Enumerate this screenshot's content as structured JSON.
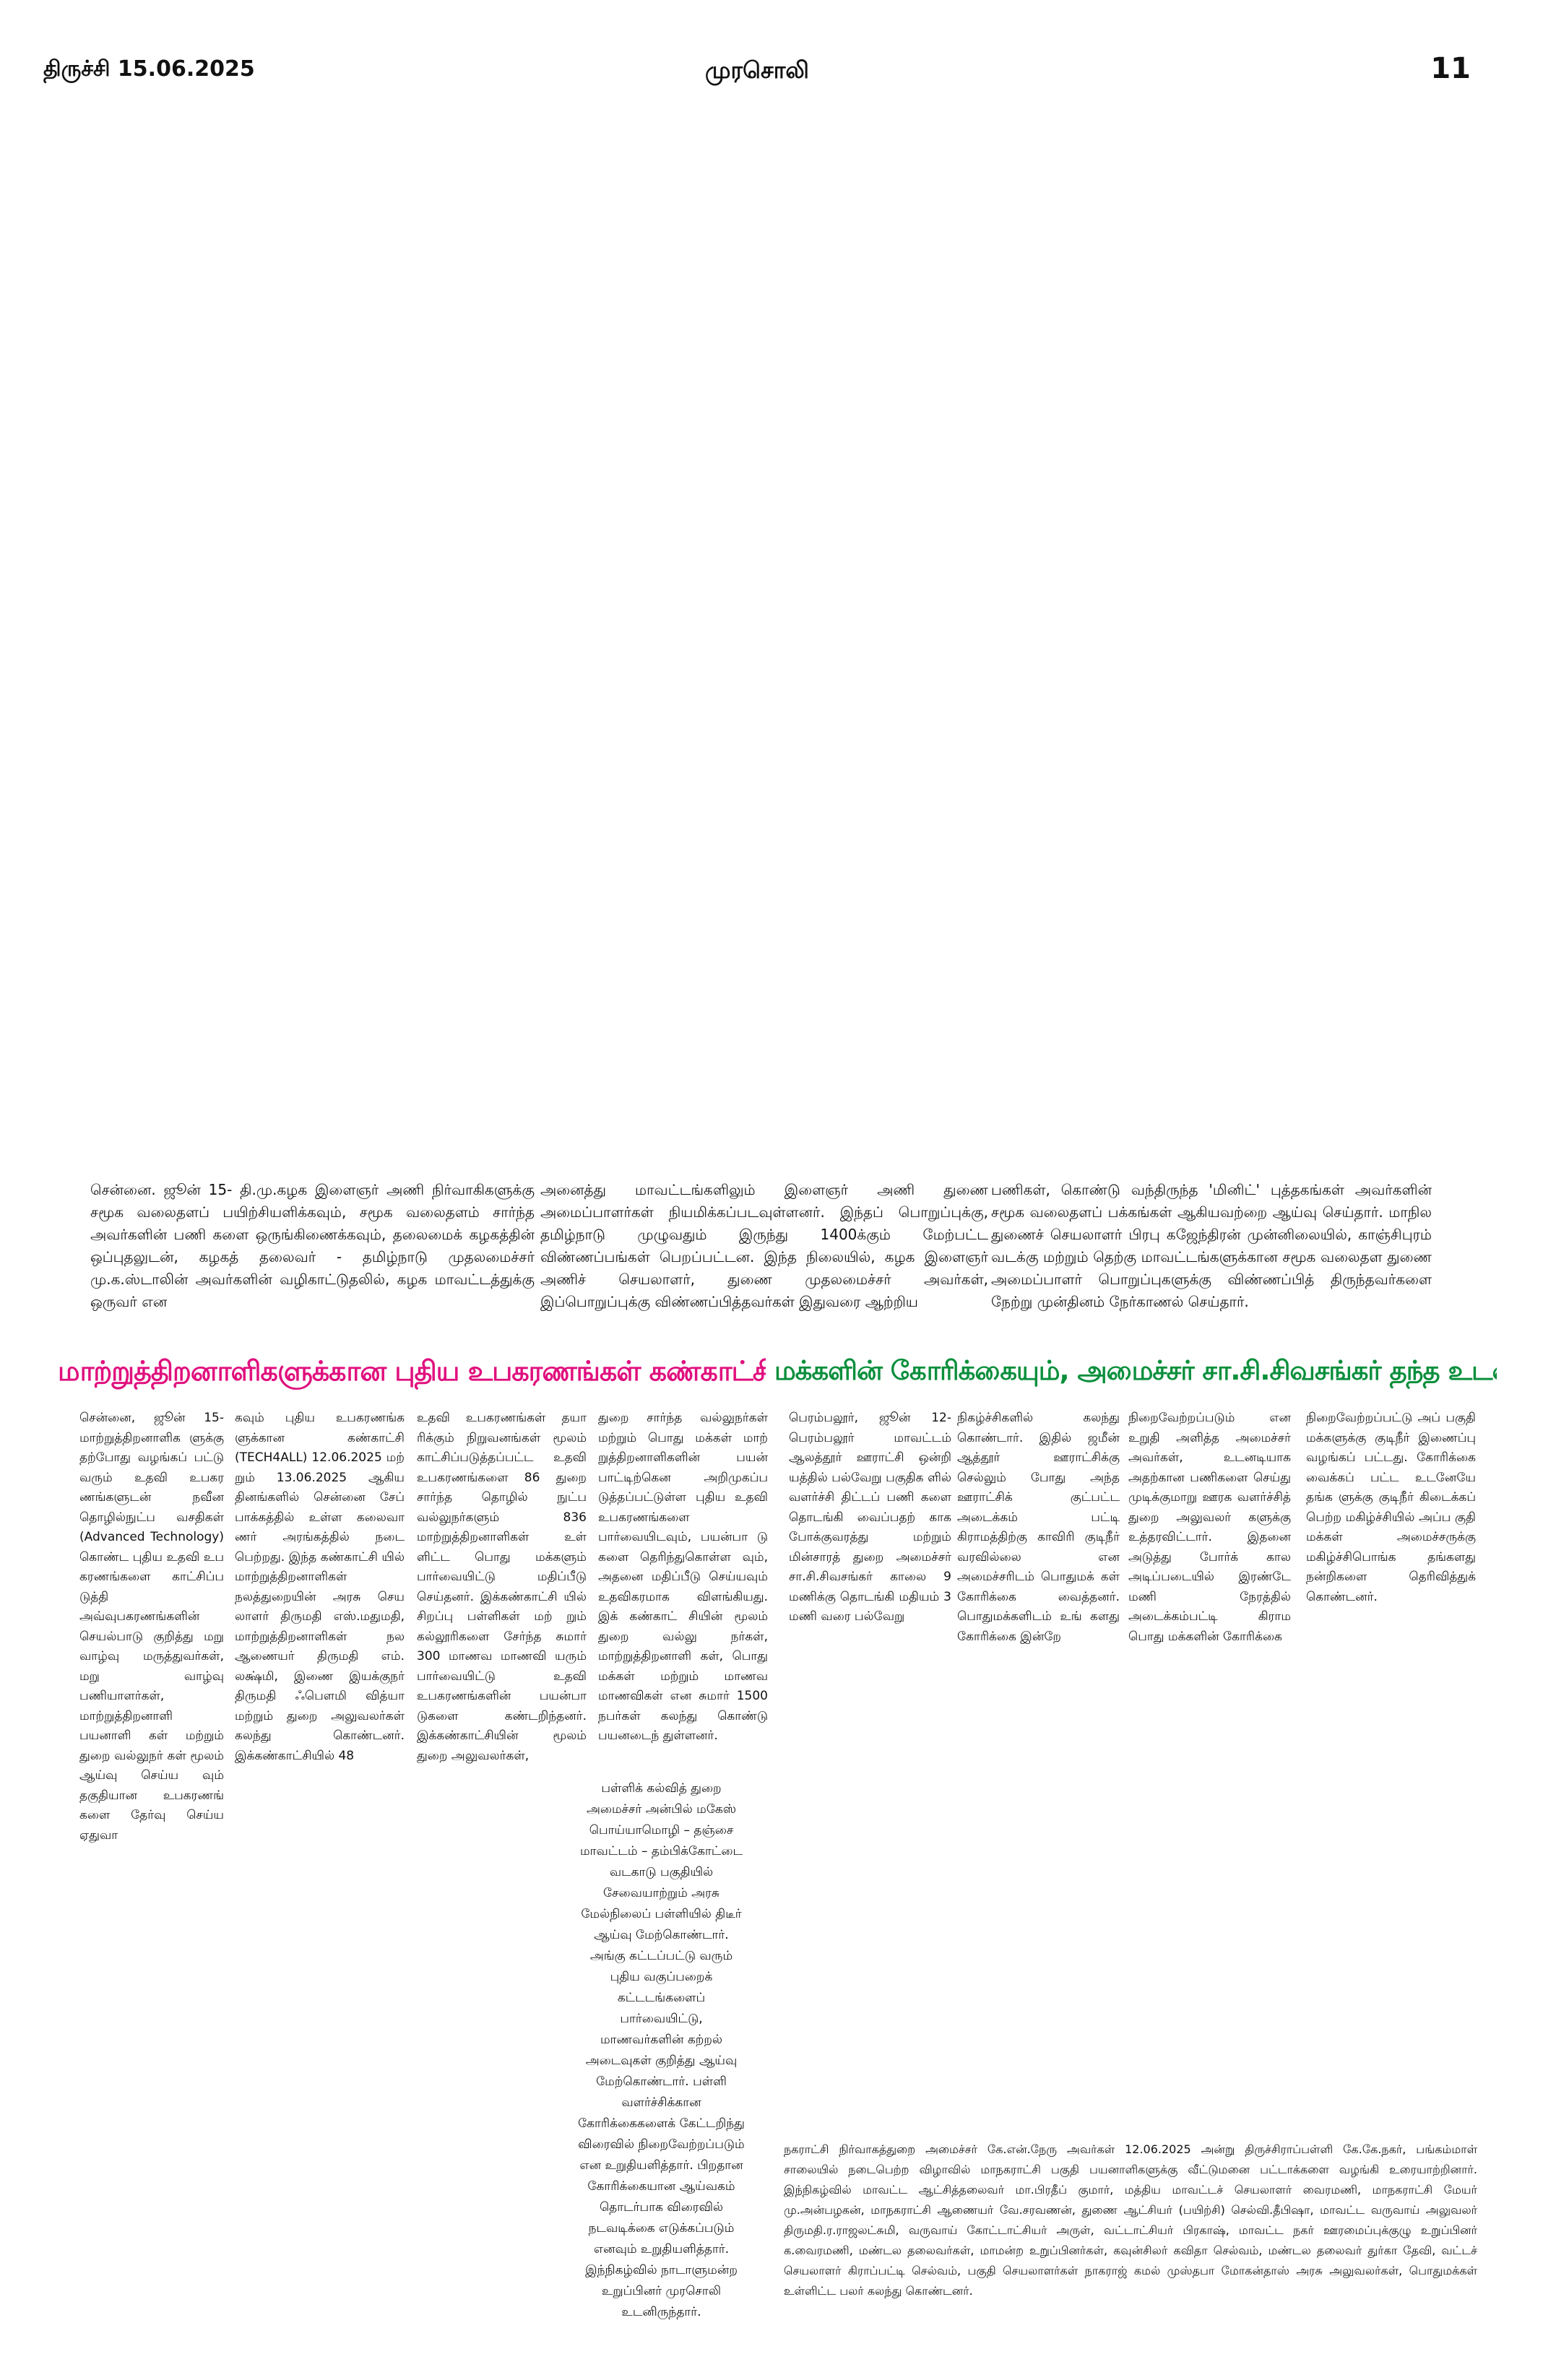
{
  "header": {
    "date": "திருச்சி 15.06.2025",
    "paper_name": "முரசொலி",
    "page_number": "11"
  },
  "top_story": {
    "col1": "சென்னை. ஜூன் 15- தி.மு.கழக இளைஞர் அணி நிர்வாகிகளுக்கு சமூக வலைதளப் பயிற்சியளிக்கவும், சமூக வலைதளம் சார்ந்த அவர்களின் பணி களை ஒருங்கிணைக்கவும், தலைமைக் கழகத்தின் ஒப்புதலுடன், கழகத் தலைவர் - தமிழ்நாடு முதலமைச்சர் மு.க.ஸ்டாலின் அவர்களின் வழிகாட்டுதலில், கழக மாவட்டத்துக்கு ஒருவர் என",
    "col2": "அனைத்து மாவட்டங்களிலும் இளைஞர் அணி துணை அமைப்பாளர்கள் நியமிக்கப்படவுள்ளனர். இந்தப் பொறுப்புக்கு, தமிழ்நாடு முழுவதும் இருந்து 1400க்கும் மேற்பட்ட விண்ணப்பங்கள் பெறப்பட்டன. இந்த நிலையில், கழக இளைஞர் அணிச் செயலாளர், துணை முதலமைச்சர் அவர்கள், இப்பொறுப்புக்கு விண்ணப்பித்தவர்கள் இதுவரை ஆற்றிய",
    "col3": "பணிகள், கொண்டு வந்திருந்த 'மினிட்' புத்தகங்கள் அவர்களின் சமூக வலைதளப் பக்கங்கள் ஆகியவற்றை ஆய்வு செய்தார். மாநில துணைச் செயலாளர் பிரபு கஜேந்திரன் முன்னிலையில், காஞ்சிபுரம் வடக்கு மற்றும் தெற்கு மாவட்டங்களுக்கான சமூக வலைதள துணை அமைப்பாளர் பொறுப்புகளுக்கு விண்ணப்பித் திருந்தவர்களை நேற்று முன்தினம் நேர்காணல் செய்தார்."
  },
  "story_left": {
    "headline": "மாற்றுத்திறனாளிகளுக்கான புதிய உபகரணங்கள் கண்காட்சி!",
    "col1": "சென்னை, ஜூன் 15- மாற்றுத்திறனாளிக ளுக்கு தற்போது வழங்கப் பட்டு வரும் உதவி உபகர ணங்களுடன் நவீன தொழில்நுட்ப வசதிகள் (Advanced Technology) கொண்ட புதிய உதவி உப கரணங்களை காட்சிப்ப டுத்தி அவ்வுபகரணங்களின் செயல்பாடு குறித்து மறு வாழ்வு மருத்துவர்கள், மறு வாழ்வு பணியாளர்கள், மாற்றுத்திறனாளி பயனாளி கள் மற்றும் துறை வல்லுநர் கள் மூலம் ஆய்வு செய்ய வும் தகுதியான உபகரணங் களை தேர்வு செய்ய ஏதுவா",
    "col2": "கவும் புதிய உபகரணங்க ளுக்கான கண்காட்சி (TECH4ALL) 12.06.2025 மற் றும் 13.06.2025 ஆகிய தினங்களில் சென்னை சேப் பாக்கத்தில் உள்ள கலைவா ணர் அரங்கத்தில் நடை பெற்றது. இந்த கண்காட்சி யில் மாற்றுத்திறனாளிகள் நலத்துறையின் அரசு செய லாளர் திருமதி எஸ்.மதுமதி, மாற்றுத்திறனாளிகள் நல ஆணையர் திருமதி எம். லக்ஷ்மி, இணை இயக்குநர் திருமதி ஃபௌமி வித்யா மற்றும் துறை அலுவலர்கள் கலந்து கொண்டனர். இக்கண்காட்சியில் 48",
    "col3": "உதவி உபகரணங்கள் தயா ரிக்கும் நிறுவனங்கள் மூலம் காட்சிப்படுத்தப்பட்ட உதவி உபகரணங்களை 86 துறை சார்ந்த தொழில் நுட்ப வல்லுநர்களும் 836 மாற்றுத்திறனாளிகள் உள் ளிட்ட பொது மக்களும் பார்வையிட்டு மதிப்பீடு செய்தனர். இக்கண்காட்சி யில் சிறப்பு பள்ளிகள் மற் றும் கல்லூரிகளை சேர்ந்த சுமார் 300 மாணவ மாணவி யரும் பார்வையிட்டு உதவி உபகரணங்களின் பயன்பா டுகளை கண்டறிந்தனர். இக்கண்காட்சியின் மூலம் துறை அலுவலர்கள்,",
    "col4": "துறை சார்ந்த வல்லுநர்கள் மற்றும் பொது மக்கள் மாற் றுத்திறனாளிகளின் பயன் பாட்டிற்கென அறிமுகப்ப டுத்தப்பட்டுள்ள புதிய உதவி உபகரணங்களை பார்வையிடவும், பயன்பா டு களை தெரிந்துகொள்ள வும், அதனை மதிப்பீடு செய்யவும் உதவிகரமாக விளங்கியது. இக் கண்காட் சியின் மூலம் துறை வல்லு நர்கள், மாற்றுத்திறனாளி கள், பொது மக்கள் மற்றும் மாணவ மாணவிகள் என சுமார் 1500 நபர்கள் கலந்து கொண்டு பயனடைந் துள்ளனர்."
  },
  "story_right": {
    "headline": "மக்களின் கோரிக்கையும், அமைச்சர் சா.சி.சிவசங்கர் தந்த உடனடித் தீர்வும்!",
    "col1": "பெரம்பலூர், ஜூன் 12- பெரம்பலூர் மாவட்டம் ஆலத்தூர் ஊராட்சி ஒன்றி யத்தில் பல்வேறு பகுதிக ளில் வளர்ச்சி திட்டப் பணி களை தொடங்கி வைப்பதற் காக போக்குவரத்து மற்றும் மின்சாரத் துறை அமைச்சர் சா.சி.சிவசங்கர் காலை 9 மணிக்கு தொடங்கி மதியம் 3 மணி வரை பல்வேறு",
    "col2": "நிகழ்ச்சிகளில் கலந்து கொண்டார். இதில் ஜமீன் ஆத்தூர் ஊராட்சிக்கு செல்லும் போது அந்த ஊராட்சிக் குட்பட்ட அடைக்கம் பட்டி கிராமத்திற்கு காவிரி குடிநீர் வரவில்லை என அமைச்சரிடம் பொதுமக் கள் கோரிக்கை வைத்தனர். பொதுமக்களிடம் உங் களது கோரிக்கை இன்றே",
    "col3": "நிறைவேற்றப்படும் என உறுதி அளித்த அமைச்சர் அவர்கள், உடனடியாக அதற்கான பணிகளை செய்து முடிக்குமாறு ஊரக வளர்ச்சித் துறை அலுவலர் களுக்கு உத்தரவிட்டார். இதனை அடுத்து போர்க் கால அடிப்படையில் இரண்டே மணி நேரத்தில் அடைக்கம்பட்டி கிராம பொது மக்களின் கோரிக்கை",
    "col4": "நிறைவேற்றப்பட்டு அப் பகுதி மக்களுக்கு குடிநீர் இணைப்பு வழங்கப் பட்டது. கோரிக்கை வைக்கப் பட்ட உடனேயே தங்க ளுக்கு குடிநீர் கிடைக்கப் பெற்ற மகிழ்ச்சியில் அப்ப குதி மக்கள் அமைச்சருக்கு மகிழ்ச்சிபொங்க தங்களது நன்றிகளை தெரிவித்துக் கொண்டனர்."
  },
  "caption_center": "பள்ளிக் கல்வித் துறை அமைச்சர் அன்பில் மகேஸ் பொய்யாமொழி – தஞ்சை மாவட்டம் – தம்பிக்கோட்டை வடகாடு பகுதியில் சேவையாற்றும் அரசு மேல்நிலைப் பள்ளியில் திடீர் ஆய்வு மேற்கொண்டார். அங்கு கட்டப்பட்டு வரும் புதிய வகுப்பறைக் கட்டடங்களைப் பார்வையிட்டு, மாணவர்களின் கற்றல் அடைவுகள் குறித்து ஆய்வு மேற்கொண்டார். பள்ளி வளர்ச்சிக்கான கோரிக்கைகளைக் கேட்டறிந்து விரைவில் நிறைவேற்றப்படும் என உறுதியளித்தார். பிறதான கோரிக்கையான ஆய்வகம் தொடர்பாக விரைவில் நடவடிக்கை எடுக்கப்படும் எனவும் உறுதியளித்தார். இந்நிகழ்வில் நாடாளுமன்ற உறுப்பினர் முரசொலி உடனிருந்தார்.",
  "caption_bottom": "நகராட்சி நிர்வாகத்துறை அமைச்சர் கே.என்.நேரு அவர்கள் 12.06.2025 அன்று திருச்சிராப்பள்ளி கே.கே.நகர், பங்கம்மாள் சாலையில் நடைபெற்ற விழாவில் மாநகராட்சி பகுதி பயனாளிகளுக்கு வீட்டுமனை பட்டாக்களை வழங்கி உரையாற்றினார். இந்நிகழ்வில் மாவட்ட ஆட்சித்தலைவர் மா.பிரதீப் குமார், மத்திய மாவட்டச் செயலாளர் வைரமணி, மாநகராட்சி மேயர் மு.அன்பழகன், மாநகராட்சி ஆணையர் வே.சரவணன், துணை ஆட்சியர் (பயிற்சி) செல்வி.தீபிஷா, மாவட்ட வருவாய் அலுவலர் திருமதி.ர.ராஜலட்சுமி, வருவாய் கோட்டாட்சியர் அருள், வட்டாட்சியர் பிரகாஷ், மாவட்ட நகர் ஊரமைப்புக்குழு உறுப்பினர் க.வைரமணி, மண்டல தலைவர்கள், மாமன்ற உறுப்பினர்கள், கவுன்சிலர் கவிதா செல்வம், மண்டல தலைவர் துர்கா தேவி, வட்டச் செயலாளர் கிராப்பட்டி செல்வம், பகுதி செயலாளர்கள் நாகராஜ் கமல் முஸ்தபா மோகன்தாஸ் அரசு அலுவலர்கள், பொதுமக்கள் உள்ளிட்ட பலர் கலந்து கொண்டனர்.",
  "colors": {
    "headline_left": "#e0107e",
    "headline_right": "#0a8f3c"
  }
}
